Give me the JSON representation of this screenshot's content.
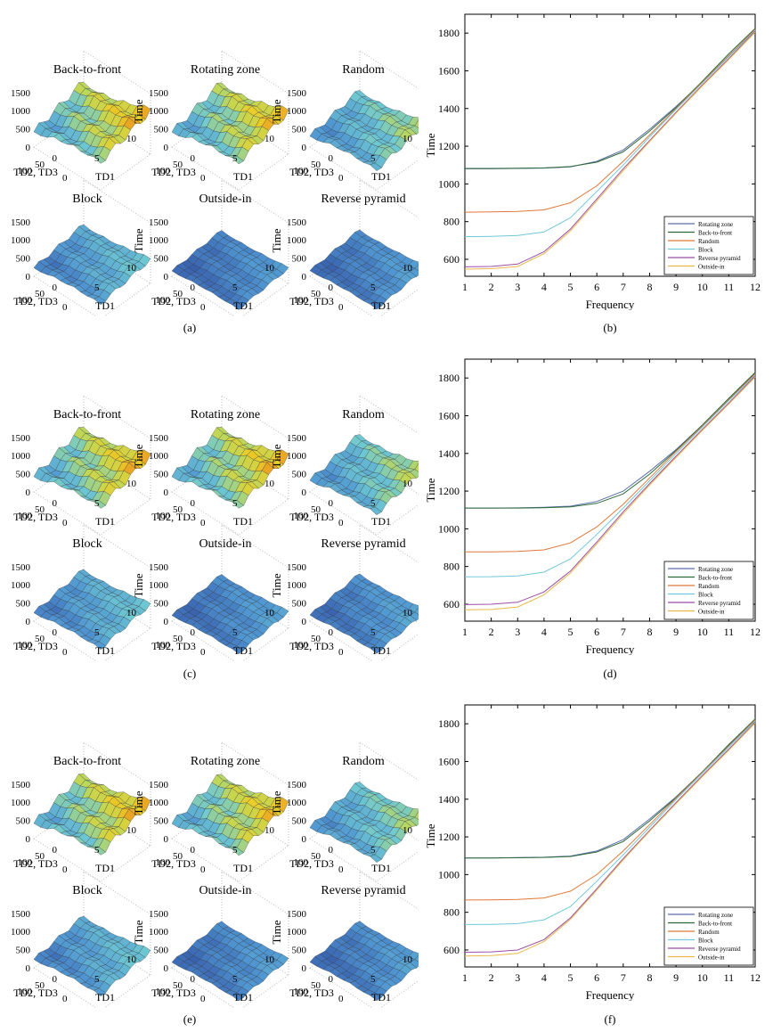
{
  "panels": [
    {
      "label": "(a)"
    },
    {
      "label": "(b)"
    },
    {
      "label": "(c)"
    },
    {
      "label": "(d)"
    },
    {
      "label": "(e)"
    },
    {
      "label": "(f)"
    }
  ],
  "surface_axes": {
    "zlabel": "Time",
    "xlabel": "TD1",
    "ylabel": "TD2, TD3",
    "z_ticks": [
      "0",
      "500",
      "1000",
      "1500"
    ],
    "x_ticks": [
      "0",
      "5",
      "10"
    ],
    "y_ticks": [
      "0",
      "50",
      "100"
    ]
  },
  "colors": {
    "Rotating zone": "#5a6fa8",
    "Back-to-front": "#2f6b3a",
    "Random": "#e07838",
    "Block": "#70c8d8",
    "Reverse pyramid": "#9a4fa6",
    "Outside-in": "#e8b84a"
  },
  "chart_data": [
    {
      "type": "surface-grid",
      "panel": "(a)",
      "titles": [
        "Back-to-front",
        "Rotating zone",
        "Random",
        "Block",
        "Outside-in",
        "Reverse pyramid"
      ],
      "level": [
        1.0,
        0.98,
        0.72,
        0.55,
        0.35,
        0.37
      ]
    },
    {
      "type": "line",
      "panel": "(b)",
      "xlabel": "Frequency",
      "ylabel": "Time",
      "x": [
        1,
        2,
        3,
        4,
        5,
        6,
        7,
        8,
        9,
        10,
        11,
        12
      ],
      "xlim": [
        1,
        12
      ],
      "ylim": [
        510,
        1900
      ],
      "yticks": [
        600,
        800,
        1000,
        1200,
        1400,
        1600,
        1800
      ],
      "legend_position": "bottom-right",
      "series": [
        {
          "name": "Rotating zone",
          "values": [
            1080,
            1080,
            1082,
            1084,
            1090,
            1120,
            1180,
            1290,
            1410,
            1540,
            1680,
            1815
          ]
        },
        {
          "name": "Back-to-front",
          "values": [
            1082,
            1082,
            1083,
            1085,
            1092,
            1115,
            1170,
            1280,
            1405,
            1545,
            1690,
            1825
          ]
        },
        {
          "name": "Random",
          "values": [
            850,
            852,
            854,
            862,
            900,
            990,
            1120,
            1260,
            1400,
            1540,
            1680,
            1820
          ]
        },
        {
          "name": "Block",
          "values": [
            720,
            722,
            726,
            745,
            820,
            960,
            1100,
            1250,
            1395,
            1535,
            1675,
            1815
          ]
        },
        {
          "name": "Reverse pyramid",
          "values": [
            560,
            562,
            575,
            640,
            760,
            920,
            1080,
            1230,
            1380,
            1525,
            1665,
            1810
          ]
        },
        {
          "name": "Outside-in",
          "values": [
            548,
            550,
            562,
            630,
            750,
            910,
            1070,
            1225,
            1375,
            1520,
            1660,
            1805
          ]
        }
      ]
    },
    {
      "type": "surface-grid",
      "panel": "(c)",
      "titles": [
        "Back-to-front",
        "Rotating zone",
        "Random",
        "Block",
        "Outside-in",
        "Reverse pyramid"
      ],
      "level": [
        1.0,
        1.0,
        0.75,
        0.55,
        0.38,
        0.4
      ]
    },
    {
      "type": "line",
      "panel": "(d)",
      "xlabel": "Frequency",
      "ylabel": "Time",
      "x": [
        1,
        2,
        3,
        4,
        5,
        6,
        7,
        8,
        9,
        10,
        11,
        12
      ],
      "xlim": [
        1,
        12
      ],
      "ylim": [
        510,
        1900
      ],
      "yticks": [
        600,
        800,
        1000,
        1200,
        1400,
        1600,
        1800
      ],
      "legend_position": "bottom-right",
      "series": [
        {
          "name": "Rotating zone",
          "values": [
            1110,
            1110,
            1111,
            1114,
            1120,
            1145,
            1200,
            1305,
            1420,
            1550,
            1690,
            1825
          ]
        },
        {
          "name": "Back-to-front",
          "values": [
            1110,
            1110,
            1110,
            1112,
            1116,
            1135,
            1185,
            1290,
            1415,
            1550,
            1692,
            1830
          ]
        },
        {
          "name": "Random",
          "values": [
            878,
            878,
            880,
            888,
            925,
            1010,
            1130,
            1270,
            1410,
            1545,
            1685,
            1822
          ]
        },
        {
          "name": "Block",
          "values": [
            745,
            746,
            750,
            770,
            840,
            970,
            1110,
            1255,
            1400,
            1540,
            1680,
            1815
          ]
        },
        {
          "name": "Reverse pyramid",
          "values": [
            598,
            600,
            610,
            665,
            775,
            930,
            1090,
            1240,
            1385,
            1528,
            1668,
            1810
          ]
        },
        {
          "name": "Outside-in",
          "values": [
            570,
            572,
            585,
            650,
            765,
            920,
            1080,
            1232,
            1378,
            1522,
            1662,
            1805
          ]
        }
      ]
    },
    {
      "type": "surface-grid",
      "panel": "(e)",
      "titles": [
        "Back-to-front",
        "Rotating zone",
        "Random",
        "Block",
        "Outside-in",
        "Reverse pyramid"
      ],
      "level": [
        1.0,
        0.98,
        0.72,
        0.55,
        0.37,
        0.38
      ]
    },
    {
      "type": "line",
      "panel": "(f)",
      "xlabel": "Frequency",
      "ylabel": "Time",
      "x": [
        1,
        2,
        3,
        4,
        5,
        6,
        7,
        8,
        9,
        10,
        11,
        12
      ],
      "xlim": [
        1,
        12
      ],
      "ylim": [
        510,
        1900
      ],
      "yticks": [
        600,
        800,
        1000,
        1200,
        1400,
        1600,
        1800
      ],
      "legend_position": "bottom-right",
      "series": [
        {
          "name": "Rotating zone",
          "values": [
            1088,
            1088,
            1090,
            1092,
            1098,
            1125,
            1185,
            1295,
            1412,
            1545,
            1685,
            1820
          ]
        },
        {
          "name": "Back-to-front",
          "values": [
            1088,
            1088,
            1089,
            1091,
            1096,
            1120,
            1175,
            1285,
            1408,
            1545,
            1690,
            1826
          ]
        },
        {
          "name": "Random",
          "values": [
            865,
            866,
            868,
            876,
            912,
            1000,
            1125,
            1265,
            1405,
            1542,
            1682,
            1820
          ]
        },
        {
          "name": "Block",
          "values": [
            735,
            736,
            740,
            760,
            830,
            965,
            1105,
            1252,
            1398,
            1538,
            1678,
            1815
          ]
        },
        {
          "name": "Reverse pyramid",
          "values": [
            588,
            590,
            600,
            655,
            770,
            925,
            1085,
            1235,
            1382,
            1526,
            1666,
            1808
          ]
        },
        {
          "name": "Outside-in",
          "values": [
            568,
            570,
            582,
            645,
            762,
            918,
            1078,
            1230,
            1376,
            1520,
            1660,
            1804
          ]
        }
      ]
    }
  ]
}
